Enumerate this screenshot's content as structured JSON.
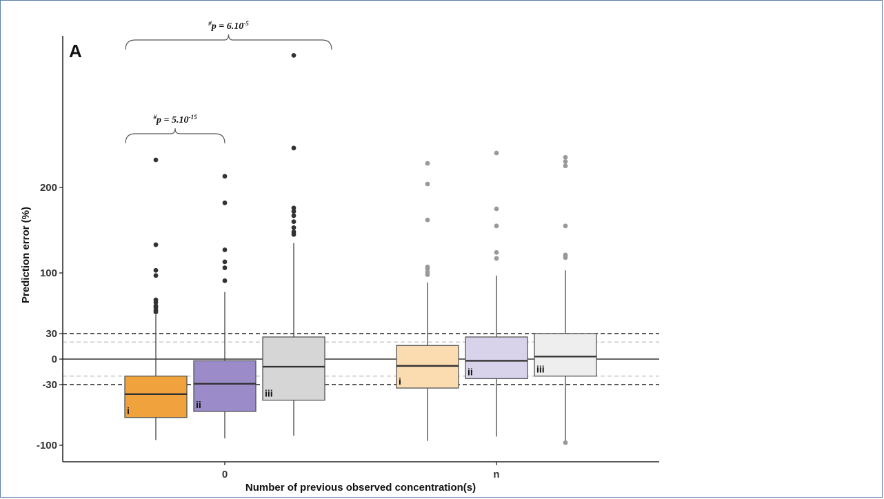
{
  "chart_data": {
    "type": "box",
    "panel_label": "A",
    "xlabel": "Number of previous observed concentration(s)",
    "ylabel": "Prediction error (%)",
    "ylim": [
      -110,
      385
    ],
    "y_ticks": [
      -100,
      -30,
      0,
      30,
      100,
      200
    ],
    "y_tick_labels": [
      "-100",
      "-30",
      "0",
      "30",
      "100",
      "200"
    ],
    "categories": [
      "0",
      "n"
    ],
    "reference_lines": [
      {
        "y": 0,
        "style": "solid",
        "color": "#333333"
      },
      {
        "y": 30,
        "style": "dashed",
        "color": "#222222"
      },
      {
        "y": -30,
        "style": "dashed",
        "color": "#222222"
      },
      {
        "y": 20,
        "style": "dashed",
        "color": "#cccccc"
      },
      {
        "y": -20,
        "style": "dashed",
        "color": "#cccccc"
      }
    ],
    "groups": [
      {
        "category": "0",
        "label": "i",
        "color": "#f0a33c",
        "outlier_color": "#333333",
        "q1": -68,
        "median": -41,
        "q3": -20,
        "whisker_low": -94,
        "whisker_high": 52,
        "outliers": [
          232,
          133,
          103,
          97,
          69,
          66,
          62,
          60,
          57,
          55
        ]
      },
      {
        "category": "0",
        "label": "ii",
        "color": "#9b8bc8",
        "outlier_color": "#333333",
        "q1": -61,
        "median": -29,
        "q3": -2,
        "whisker_low": -92,
        "whisker_high": 78,
        "outliers": [
          213,
          182,
          127,
          113,
          106,
          91
        ]
      },
      {
        "category": "0",
        "label": "iii",
        "color": "#d6d6d6",
        "outlier_color": "#333333",
        "q1": -48,
        "median": -9,
        "q3": 26,
        "whisker_low": -89,
        "whisker_high": 135,
        "outliers": [
          358,
          246,
          176,
          172,
          167,
          160,
          153,
          148,
          145
        ]
      },
      {
        "category": "n",
        "label": "i",
        "color": "#fbdcb1",
        "outlier_color": "#999999",
        "q1": -34,
        "median": -8,
        "q3": 16,
        "whisker_low": -95,
        "whisker_high": 89,
        "outliers": [
          228,
          204,
          162,
          107,
          105,
          101,
          98
        ]
      },
      {
        "category": "n",
        "label": "ii",
        "color": "#d8d3ea",
        "outlier_color": "#999999",
        "q1": -23,
        "median": -2,
        "q3": 26,
        "whisker_low": -90,
        "whisker_high": 97,
        "outliers": [
          240,
          175,
          155,
          124,
          117
        ]
      },
      {
        "category": "n",
        "label": "iii",
        "color": "#eeeeee",
        "outlier_color": "#999999",
        "q1": -20,
        "median": 3,
        "q3": 30,
        "whisker_low": -99,
        "whisker_high": 103,
        "outliers": [
          -97,
          235,
          230,
          225,
          155,
          121,
          118
        ]
      }
    ],
    "annotations": [
      {
        "text_prefix": "#",
        "text_main": "p = 6.10",
        "text_exp": "-5",
        "from_group": 0,
        "to_group": 2,
        "bracket_y": 358,
        "level": 2
      },
      {
        "text_prefix": "#",
        "text_main": "p = 5.10",
        "text_exp": "-15",
        "from_group": 0,
        "to_group": 1,
        "bracket_y": 235,
        "level": 1
      }
    ]
  }
}
